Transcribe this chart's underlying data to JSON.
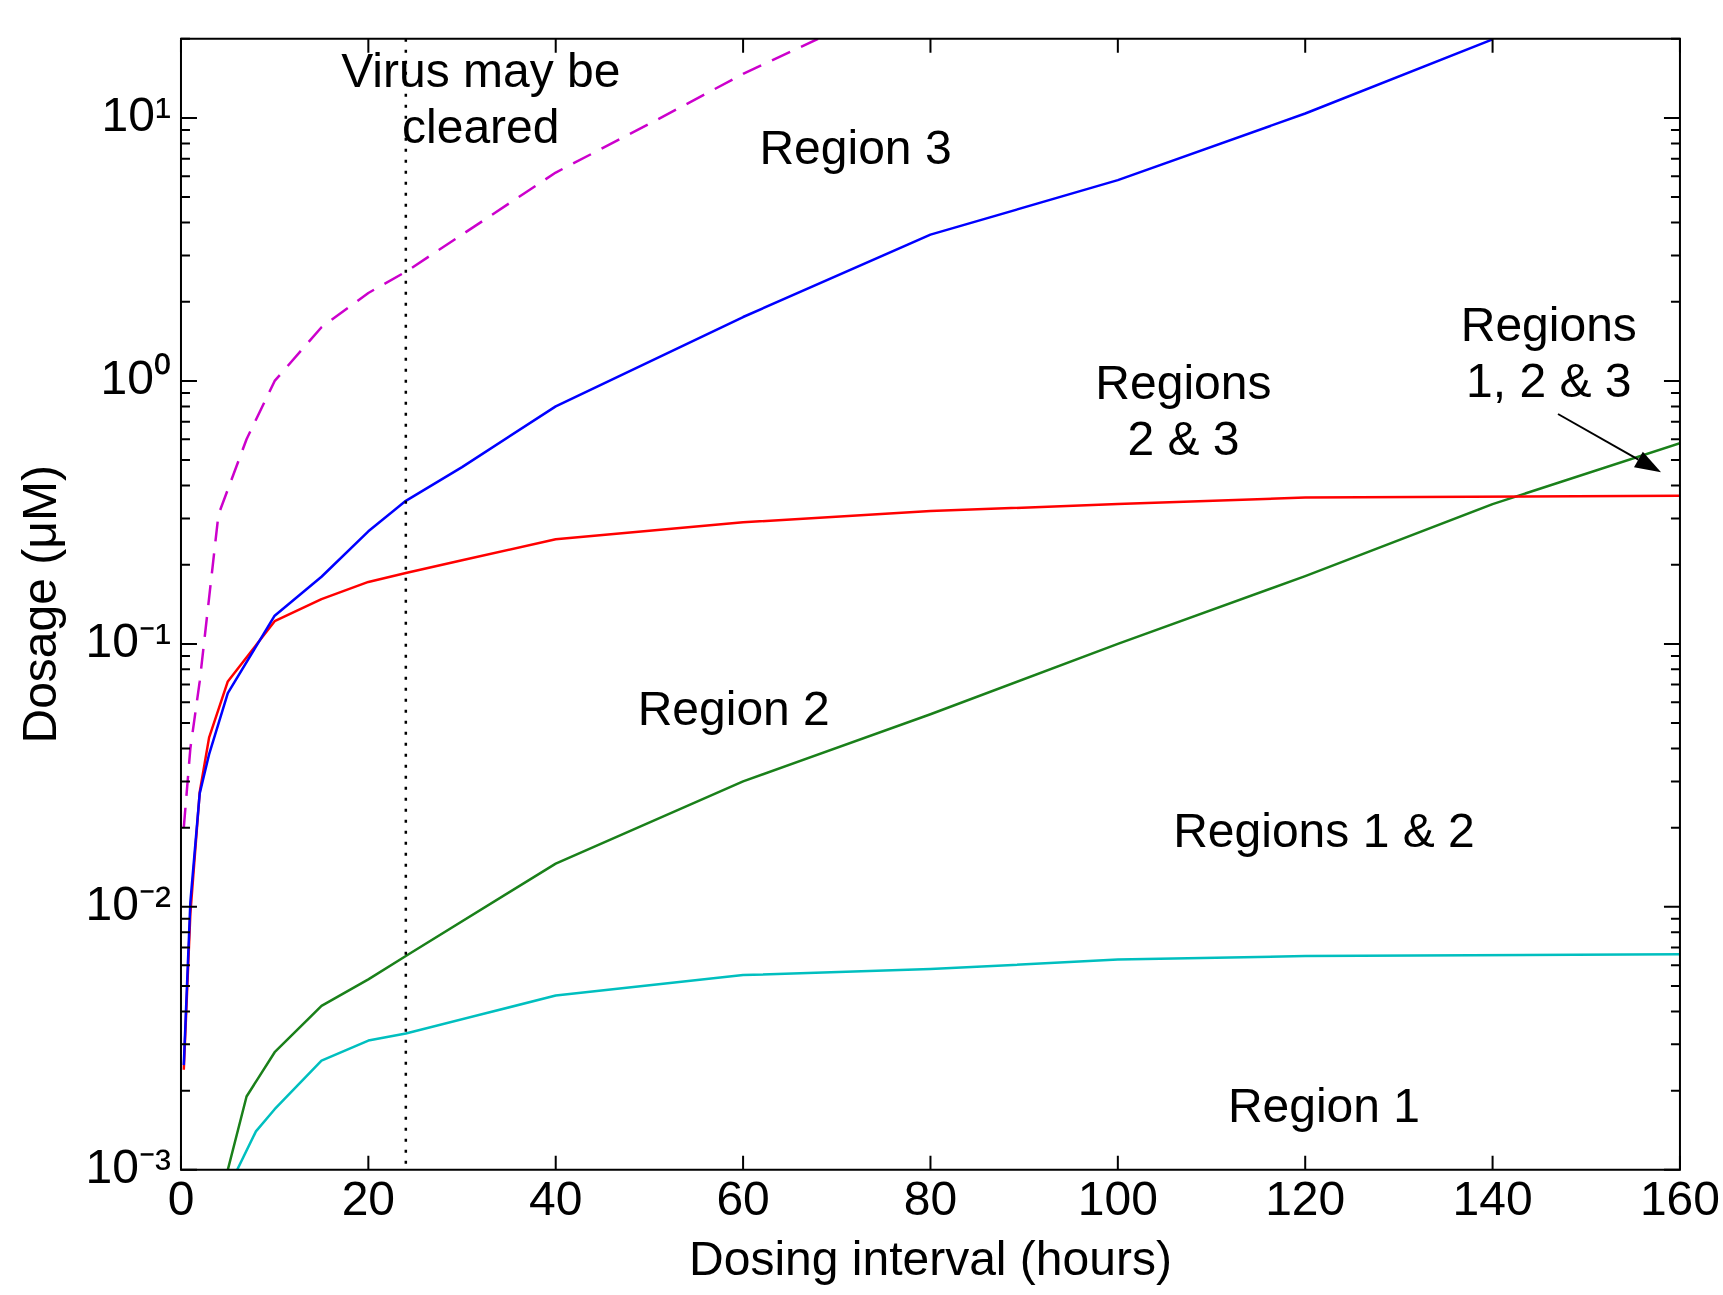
{
  "chart_data": {
    "type": "line",
    "xlabel": "Dosing interval (hours)",
    "ylabel": "Dosage (μM)",
    "log": "y",
    "grid": false,
    "legend": false,
    "marker": "none",
    "xlim": [
      0,
      160
    ],
    "xticks": [
      0,
      20,
      40,
      60,
      80,
      100,
      120,
      140,
      160
    ],
    "ylim": [
      0.001,
      20
    ],
    "yticks": [
      {
        "value": 0.001,
        "label": "10⁻³"
      },
      {
        "value": 0.002,
        "label": null
      },
      {
        "value": 0.003,
        "label": null
      },
      {
        "value": 0.004,
        "label": null
      },
      {
        "value": 0.005,
        "label": null
      },
      {
        "value": 0.006,
        "label": null
      },
      {
        "value": 0.007,
        "label": null
      },
      {
        "value": 0.008,
        "label": null
      },
      {
        "value": 0.009,
        "label": null
      },
      {
        "value": 0.01,
        "label": "10⁻²"
      },
      {
        "value": 0.02,
        "label": null
      },
      {
        "value": 0.03,
        "label": null
      },
      {
        "value": 0.04,
        "label": null
      },
      {
        "value": 0.05,
        "label": null
      },
      {
        "value": 0.06,
        "label": null
      },
      {
        "value": 0.07,
        "label": null
      },
      {
        "value": 0.08,
        "label": null
      },
      {
        "value": 0.09,
        "label": null
      },
      {
        "value": 0.1,
        "label": "10⁻¹"
      },
      {
        "value": 0.2,
        "label": null
      },
      {
        "value": 0.3,
        "label": null
      },
      {
        "value": 0.4,
        "label": null
      },
      {
        "value": 0.5,
        "label": null
      },
      {
        "value": 0.6,
        "label": null
      },
      {
        "value": 0.7,
        "label": null
      },
      {
        "value": 0.8,
        "label": null
      },
      {
        "value": 0.9,
        "label": null
      },
      {
        "value": 1,
        "label": "10⁰"
      },
      {
        "value": 2,
        "label": null
      },
      {
        "value": 3,
        "label": null
      },
      {
        "value": 4,
        "label": null
      },
      {
        "value": 5,
        "label": null
      },
      {
        "value": 6,
        "label": null
      },
      {
        "value": 7,
        "label": null
      },
      {
        "value": 8,
        "label": null
      },
      {
        "value": 9,
        "label": null
      },
      {
        "value": 10,
        "label": "10¹"
      },
      {
        "value": 20,
        "label": null
      }
    ],
    "series": [
      {
        "color": "#cc00cc",
        "line_style": "dashed",
        "x": [
          0.3,
          1,
          2,
          4,
          7,
          10,
          15,
          20,
          24,
          30,
          40,
          50,
          60,
          68
        ],
        "values": [
          0.02,
          0.04,
          0.072,
          0.31,
          0.6,
          1.0,
          1.6,
          2.16,
          2.6,
          3.6,
          6.2,
          9.5,
          14.7,
          20
        ]
      },
      {
        "color": "#0000ff",
        "line_style": "solid",
        "x": [
          0.3,
          1,
          2,
          3,
          5,
          10,
          15,
          20,
          24,
          30,
          40,
          60,
          80,
          100,
          120,
          140
        ],
        "values": [
          0.0025,
          0.0104,
          0.027,
          0.038,
          0.065,
          0.128,
          0.18,
          0.268,
          0.35,
          0.47,
          0.8,
          1.75,
          3.6,
          5.8,
          10.4,
          19.9
        ]
      },
      {
        "color": "#ff0000",
        "line_style": "solid",
        "x": [
          0.3,
          1,
          2,
          3,
          5,
          10,
          15,
          20,
          24,
          30,
          40,
          60,
          80,
          100,
          120,
          160
        ],
        "values": [
          0.0024,
          0.0094,
          0.0273,
          0.044,
          0.072,
          0.122,
          0.148,
          0.172,
          0.186,
          0.208,
          0.25,
          0.29,
          0.32,
          0.34,
          0.36,
          0.366
        ]
      },
      {
        "color": "#1a801a",
        "line_style": "solid",
        "x": [
          5,
          7,
          10,
          15,
          20,
          24,
          40,
          60,
          80,
          100,
          120,
          140,
          160
        ],
        "values": [
          0.001,
          0.0019,
          0.0028,
          0.0042,
          0.0053,
          0.0065,
          0.0146,
          0.03,
          0.054,
          0.1,
          0.181,
          0.34,
          0.58
        ]
      },
      {
        "color": "#00bfbf",
        "line_style": "solid",
        "x": [
          6,
          8,
          10,
          15,
          20,
          24,
          40,
          60,
          80,
          100,
          120,
          160
        ],
        "values": [
          0.001,
          0.0014,
          0.0017,
          0.0026,
          0.0031,
          0.0033,
          0.0046,
          0.0055,
          0.0058,
          0.0063,
          0.0065,
          0.0066
        ]
      }
    ],
    "ref_lines": [
      {
        "axis": "x",
        "value": 24,
        "label": null,
        "color": "#000000",
        "line_style": "dotted"
      }
    ],
    "annotations": [
      "Virus may be\ncleared",
      "Region 3",
      "Regions\n2 & 3",
      "Regions\n1, 2 & 3",
      "Region 2",
      "Regions 1 & 2",
      "Region 1"
    ]
  }
}
